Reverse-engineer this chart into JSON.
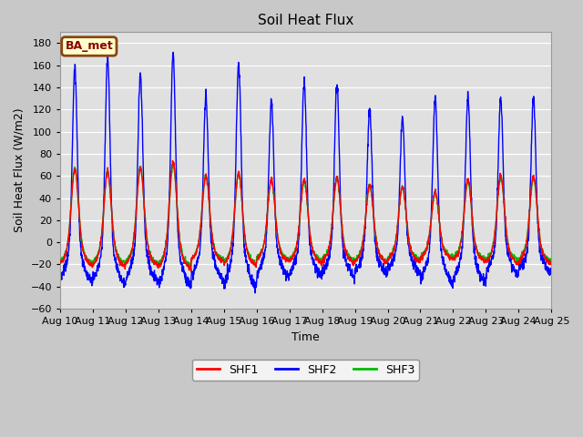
{
  "title": "Soil Heat Flux",
  "xlabel": "Time",
  "ylabel": "Soil Heat Flux (W/m2)",
  "ylim": [
    -60,
    190
  ],
  "yticks": [
    -60,
    -40,
    -20,
    0,
    20,
    40,
    60,
    80,
    100,
    120,
    140,
    160,
    180
  ],
  "date_labels": [
    "Aug 10",
    "Aug 11",
    "Aug 12",
    "Aug 13",
    "Aug 14",
    "Aug 15",
    "Aug 16",
    "Aug 17",
    "Aug 18",
    "Aug 19",
    "Aug 20",
    "Aug 21",
    "Aug 22",
    "Aug 23",
    "Aug 24",
    "Aug 25"
  ],
  "fig_bg_color": "#c8c8c8",
  "plot_bg_color": "#e0e0e0",
  "shf1_color": "#ff0000",
  "shf2_color": "#0000ff",
  "shf3_color": "#00bb00",
  "line_width": 1.0,
  "legend_label": "BA_met",
  "legend_box_facecolor": "#ffffcc",
  "legend_box_edgecolor": "#8B4513",
  "n_days": 15,
  "points_per_day": 144
}
